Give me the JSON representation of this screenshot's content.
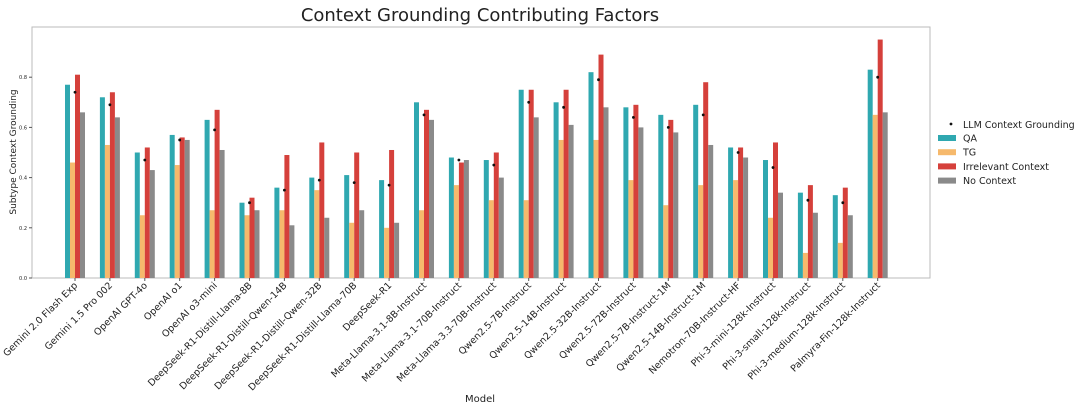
{
  "chart_data": {
    "type": "bar",
    "title": "Context Grounding Contributing Factors",
    "xlabel": "Model",
    "ylabel": "Subtype Context Grounding",
    "ylim": [
      0,
      1.0
    ],
    "yticks": [
      "0.0",
      "0.2",
      "0.4",
      "0.6",
      "0.8"
    ],
    "grid": false,
    "legend_position": "right",
    "categories": [
      "Gemini 2.0 Flash Exp",
      "Gemini 1.5 Pro 002",
      "OpenAI GPT-4o",
      "OpenAI o1",
      "OpenAI o3-mini",
      "DeepSeek-R1-Distill-Llama-8B",
      "DeepSeek-R1-Distill-Qwen-14B",
      "DeepSeek-R1-Distill-Qwen-32B",
      "DeepSeek-R1-Distill-Llama-70B",
      "DeepSeek-R1",
      "Meta-Llama-3.1-8B-Instruct",
      "Meta-Llama-3.1-70B-Instruct",
      "Meta-Llama-3.3-70B-Instruct",
      "Qwen2.5-7B-Instruct",
      "Qwen2.5-14B-Instruct",
      "Qwen2.5-32B-Instruct",
      "Qwen2.5-72B-Instruct",
      "Qwen2.5-7B-Instruct-1M",
      "Qwen2.5-14B-Instruct-1M",
      "Nemotron-70B-Instruct-HF",
      "Phi-3-mini-128k-Instruct",
      "Phi-3-small-128k-Instruct",
      "Phi-3-medium-128k-Instruct",
      "Palmyra-Fin-128k-Instruct"
    ],
    "series": [
      {
        "name": "QA",
        "color": "#2fa8b0",
        "values": [
          0.77,
          0.72,
          0.5,
          0.57,
          0.63,
          0.3,
          0.36,
          0.4,
          0.41,
          0.39,
          0.7,
          0.48,
          0.47,
          0.75,
          0.7,
          0.82,
          0.68,
          0.65,
          0.69,
          0.52,
          0.47,
          0.34,
          0.33,
          0.83
        ]
      },
      {
        "name": "TG",
        "color": "#f6b96c",
        "values": [
          0.46,
          0.53,
          0.25,
          0.45,
          0.27,
          0.25,
          0.27,
          0.35,
          0.22,
          0.2,
          0.27,
          0.37,
          0.31,
          0.31,
          0.55,
          0.55,
          0.39,
          0.29,
          0.37,
          0.39,
          0.24,
          0.1,
          0.14,
          0.65
        ]
      },
      {
        "name": "Irrelevant Context",
        "color": "#d5403b",
        "values": [
          0.81,
          0.74,
          0.52,
          0.56,
          0.67,
          0.32,
          0.49,
          0.54,
          0.5,
          0.51,
          0.67,
          0.46,
          0.5,
          0.75,
          0.75,
          0.89,
          0.69,
          0.63,
          0.78,
          0.52,
          0.54,
          0.37,
          0.36,
          0.95
        ]
      },
      {
        "name": "No Context",
        "color": "#8a8a8a",
        "values": [
          0.66,
          0.64,
          0.43,
          0.55,
          0.51,
          0.27,
          0.21,
          0.24,
          0.27,
          0.22,
          0.63,
          0.47,
          0.4,
          0.64,
          0.61,
          0.68,
          0.6,
          0.58,
          0.53,
          0.48,
          0.34,
          0.26,
          0.25,
          0.66
        ]
      }
    ],
    "points": {
      "name": "LLM Context Grounding",
      "color": "#111111",
      "values": [
        0.74,
        0.69,
        0.47,
        0.55,
        0.59,
        0.3,
        0.35,
        0.39,
        0.38,
        0.37,
        0.65,
        0.47,
        0.45,
        0.7,
        0.68,
        0.79,
        0.64,
        0.6,
        0.65,
        0.5,
        0.44,
        0.31,
        0.3,
        0.8
      ]
    }
  }
}
